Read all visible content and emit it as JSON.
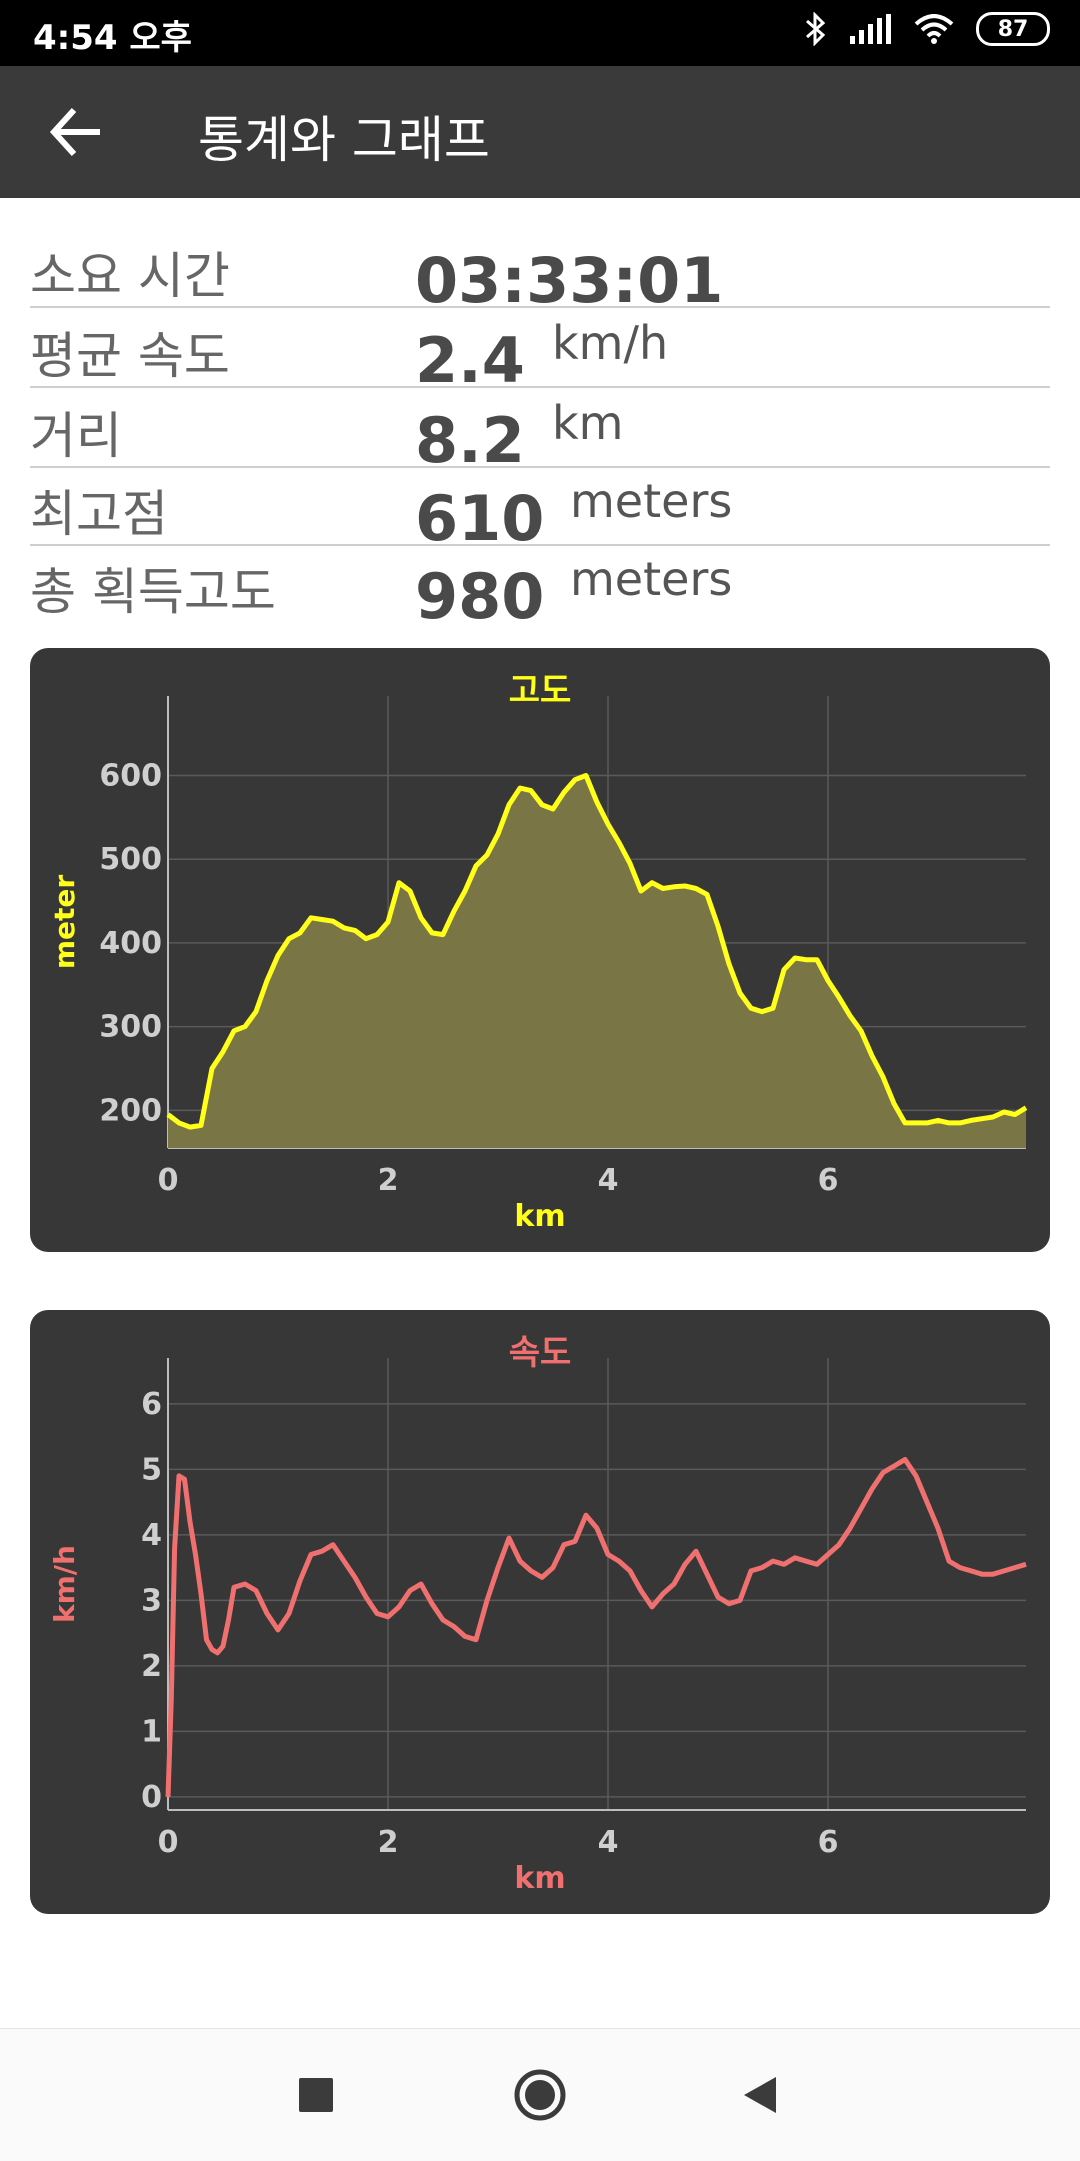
{
  "status_bar": {
    "time": "4:54 오후",
    "battery": "87",
    "icons": [
      "bluetooth-icon",
      "signal-icon",
      "wifi-icon",
      "battery-icon"
    ]
  },
  "app_bar": {
    "title": "통계와 그래프",
    "back_icon": "arrow-left-icon"
  },
  "stats": [
    {
      "label": "소요 시간",
      "value": "03:33:01",
      "unit": ""
    },
    {
      "label": "평균 속도",
      "value": "2.4",
      "unit": "km/h"
    },
    {
      "label": "거리",
      "value": "8.2",
      "unit": "km"
    },
    {
      "label": "최고점",
      "value": "610",
      "unit": "meters"
    },
    {
      "label": "총 획득고도",
      "value": "980",
      "unit": "meters"
    }
  ],
  "chart_data": [
    {
      "type": "area",
      "title": "고도",
      "xlabel": "km",
      "ylabel": "meter",
      "color": "#ffff1a",
      "fill": "#7a7544",
      "xlim": [
        0,
        7.8
      ],
      "ylim": [
        155,
        695
      ],
      "xticks": [
        0,
        2,
        4,
        6
      ],
      "yticks": [
        200,
        300,
        400,
        500,
        600
      ],
      "grid": true,
      "x": [
        0,
        0.1,
        0.2,
        0.3,
        0.4,
        0.5,
        0.6,
        0.7,
        0.8,
        0.9,
        1.0,
        1.1,
        1.2,
        1.3,
        1.4,
        1.5,
        1.6,
        1.7,
        1.8,
        1.9,
        2.0,
        2.1,
        2.2,
        2.3,
        2.4,
        2.5,
        2.6,
        2.7,
        2.8,
        2.9,
        3.0,
        3.1,
        3.2,
        3.3,
        3.4,
        3.5,
        3.6,
        3.7,
        3.8,
        3.9,
        4.0,
        4.1,
        4.2,
        4.3,
        4.4,
        4.5,
        4.6,
        4.7,
        4.8,
        4.9,
        5.0,
        5.1,
        5.2,
        5.3,
        5.4,
        5.5,
        5.6,
        5.7,
        5.8,
        5.9,
        6.0,
        6.1,
        6.2,
        6.3,
        6.4,
        6.5,
        6.6,
        6.7,
        6.8,
        6.9,
        7.0,
        7.1,
        7.2,
        7.3,
        7.4,
        7.5,
        7.6,
        7.7,
        7.8
      ],
      "y": [
        195,
        185,
        180,
        182,
        250,
        270,
        295,
        300,
        318,
        355,
        385,
        405,
        412,
        430,
        428,
        426,
        418,
        415,
        405,
        410,
        425,
        472,
        462,
        430,
        412,
        410,
        438,
        462,
        492,
        505,
        530,
        565,
        585,
        582,
        565,
        560,
        580,
        595,
        600,
        568,
        542,
        520,
        495,
        462,
        472,
        465,
        467,
        468,
        465,
        458,
        420,
        375,
        340,
        322,
        318,
        322,
        368,
        382,
        380,
        380,
        355,
        335,
        313,
        295,
        265,
        240,
        208,
        185,
        185,
        185,
        188,
        185,
        185,
        188,
        190,
        192,
        198,
        195,
        203
      ]
    },
    {
      "type": "line",
      "title": "속도",
      "xlabel": "km",
      "ylabel": "km/h",
      "color": "#f07070",
      "xlim": [
        0,
        7.8
      ],
      "ylim": [
        -0.2,
        6.7
      ],
      "xticks": [
        0,
        2,
        4,
        6
      ],
      "yticks": [
        0,
        1,
        2,
        3,
        4,
        5,
        6
      ],
      "grid": true,
      "x": [
        0,
        0.03,
        0.06,
        0.1,
        0.15,
        0.2,
        0.25,
        0.3,
        0.35,
        0.4,
        0.45,
        0.5,
        0.55,
        0.6,
        0.7,
        0.8,
        0.9,
        1.0,
        1.1,
        1.2,
        1.3,
        1.4,
        1.5,
        1.6,
        1.7,
        1.8,
        1.9,
        2.0,
        2.1,
        2.2,
        2.3,
        2.4,
        2.5,
        2.6,
        2.7,
        2.8,
        2.9,
        3.0,
        3.1,
        3.2,
        3.3,
        3.4,
        3.5,
        3.6,
        3.7,
        3.8,
        3.9,
        4.0,
        4.1,
        4.2,
        4.3,
        4.4,
        4.5,
        4.6,
        4.7,
        4.8,
        4.9,
        5.0,
        5.1,
        5.2,
        5.3,
        5.4,
        5.5,
        5.6,
        5.7,
        5.8,
        5.9,
        6.0,
        6.1,
        6.2,
        6.3,
        6.4,
        6.5,
        6.6,
        6.7,
        6.8,
        6.9,
        7.0,
        7.1,
        7.2,
        7.3,
        7.4,
        7.5,
        7.6,
        7.7,
        7.8
      ],
      "y": [
        0,
        1.5,
        3.8,
        4.9,
        4.85,
        4.2,
        3.7,
        3.1,
        2.4,
        2.25,
        2.2,
        2.3,
        2.7,
        3.2,
        3.25,
        3.15,
        2.8,
        2.55,
        2.8,
        3.3,
        3.7,
        3.75,
        3.85,
        3.6,
        3.35,
        3.05,
        2.8,
        2.75,
        2.9,
        3.15,
        3.25,
        2.95,
        2.7,
        2.6,
        2.45,
        2.4,
        3.0,
        3.5,
        3.95,
        3.6,
        3.45,
        3.35,
        3.5,
        3.85,
        3.9,
        4.3,
        4.1,
        3.7,
        3.6,
        3.45,
        3.15,
        2.9,
        3.1,
        3.25,
        3.55,
        3.75,
        3.4,
        3.05,
        2.95,
        3.0,
        3.45,
        3.5,
        3.6,
        3.55,
        3.65,
        3.6,
        3.55,
        3.7,
        3.85,
        4.1,
        4.4,
        4.7,
        4.95,
        5.05,
        5.15,
        4.9,
        4.5,
        4.1,
        3.6,
        3.5,
        3.45,
        3.4,
        3.4,
        3.45,
        3.5,
        3.55
      ],
      "y_override_note": ""
    }
  ],
  "nav_bar": {
    "icons": [
      "recent-apps-icon",
      "home-icon",
      "back-icon"
    ]
  }
}
